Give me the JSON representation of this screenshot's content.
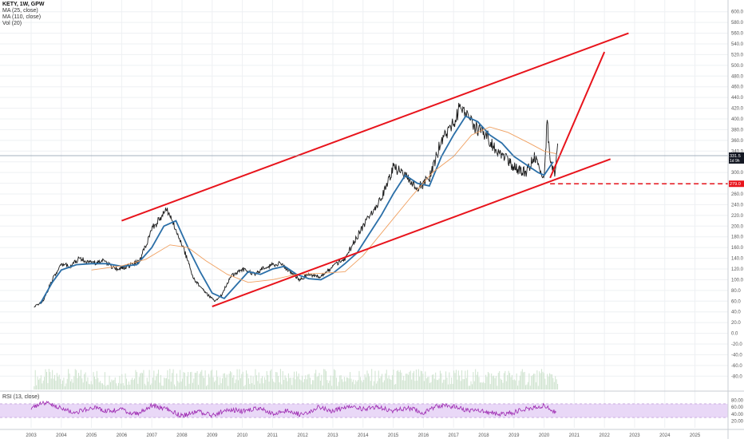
{
  "legend": {
    "title": "KETY, 1W, GPW",
    "ma1": "MA (25, close)",
    "ma2": "MA (110, close)",
    "vol": "Vol (20)",
    "rsi": "RSI (13, close)"
  },
  "colors": {
    "candles": "#1a1a1a",
    "ma_fast": "#2b6fa8",
    "ma_slow": "#f0a060",
    "channel": "#e8141c",
    "rsi_line": "#9c27b0",
    "rsi_band": "#e9d8f7",
    "volume": "#cfe3cf",
    "price_line": "#8899aa"
  },
  "price_axis": {
    "labels": [
      "600.0",
      "580.0",
      "560.0",
      "540.0",
      "520.0",
      "500.0",
      "480.0",
      "460.0",
      "440.0",
      "420.0",
      "400.0",
      "380.0",
      "360.0",
      "340.0",
      "320.0",
      "300.0",
      "280.0",
      "260.0",
      "240.0",
      "220.0",
      "200.0",
      "180.0",
      "160.0",
      "140.0",
      "120.0",
      "100.0",
      "80.0",
      "60.0",
      "40.0",
      "20.0",
      "0.0",
      "-20.0",
      "-40.0",
      "-60.0",
      "-80.0"
    ],
    "current_price": "331.5",
    "current_sub": "1d 9h",
    "support_price": "279.0"
  },
  "rsi_axis": {
    "labels": [
      "80.00",
      "60.00",
      "40.00",
      "20.00"
    ]
  },
  "time_axis": {
    "labels": [
      "2003",
      "2004",
      "2005",
      "2006",
      "2007",
      "2008",
      "2009",
      "2010",
      "2011",
      "2012",
      "2013",
      "2014",
      "2015",
      "2016",
      "2017",
      "2018",
      "2019",
      "2020",
      "2021",
      "2022",
      "2023",
      "2024",
      "2025"
    ]
  },
  "chart_data": {
    "type": "line",
    "title": "KETY, 1W, GPW",
    "xlabel": "",
    "ylabel": "",
    "ylim": [
      -90,
      610
    ],
    "grid": true,
    "series": [
      {
        "name": "KETY, 1W, GPW",
        "x": [
          2003.1,
          2003.4,
          2003.7,
          2004.0,
          2004.3,
          2004.6,
          2005.0,
          2005.4,
          2005.8,
          2006.2,
          2006.6,
          2007.0,
          2007.3,
          2007.5,
          2007.8,
          2008.1,
          2008.4,
          2008.8,
          2009.1,
          2009.3,
          2009.6,
          2010.0,
          2010.4,
          2010.8,
          2011.2,
          2011.5,
          2011.9,
          2012.2,
          2012.6,
          2013.0,
          2013.4,
          2013.8,
          2014.2,
          2014.6,
          2015.0,
          2015.4,
          2015.8,
          2016.2,
          2016.6,
          2017.0,
          2017.2,
          2017.5,
          2017.8,
          2018.1,
          2018.4,
          2018.7,
          2019.0,
          2019.4,
          2019.7,
          2020.0,
          2020.1,
          2020.2,
          2020.35,
          2020.45
        ],
        "y": [
          50,
          60,
          100,
          130,
          125,
          140,
          130,
          135,
          120,
          125,
          135,
          195,
          215,
          230,
          195,
          150,
          100,
          75,
          60,
          70,
          105,
          120,
          110,
          125,
          130,
          120,
          100,
          110,
          105,
          125,
          140,
          180,
          220,
          250,
          310,
          295,
          270,
          290,
          360,
          390,
          420,
          400,
          380,
          370,
          340,
          330,
          310,
          300,
          330,
          280,
          395,
          330,
          300,
          355
        ]
      },
      {
        "name": "MA (25, close)",
        "x": [
          2003.3,
          2003.7,
          2004.0,
          2004.5,
          2005.0,
          2005.5,
          2006.0,
          2006.5,
          2007.0,
          2007.4,
          2007.8,
          2008.2,
          2008.6,
          2009.0,
          2009.4,
          2009.8,
          2010.2,
          2010.6,
          2011.0,
          2011.4,
          2011.8,
          2012.2,
          2012.6,
          2013.0,
          2013.4,
          2013.8,
          2014.2,
          2014.6,
          2015.0,
          2015.4,
          2015.8,
          2016.2,
          2016.6,
          2017.0,
          2017.4,
          2017.8,
          2018.2,
          2018.6,
          2019.0,
          2019.4,
          2019.8,
          2020.0,
          2020.3
        ],
        "y": [
          55,
          95,
          118,
          128,
          130,
          130,
          125,
          128,
          160,
          200,
          210,
          160,
          115,
          75,
          65,
          90,
          115,
          110,
          120,
          125,
          110,
          102,
          100,
          112,
          130,
          150,
          185,
          220,
          260,
          295,
          280,
          275,
          330,
          370,
          405,
          395,
          370,
          355,
          330,
          315,
          300,
          295,
          320
        ]
      },
      {
        "name": "MA (110, close)",
        "x": [
          2005.0,
          2006.0,
          2006.8,
          2007.6,
          2008.2,
          2008.8,
          2009.5,
          2010.2,
          2011.0,
          2011.8,
          2012.6,
          2013.4,
          2014.0,
          2014.8,
          2015.6,
          2016.3,
          2017.0,
          2017.6,
          2018.2,
          2018.8,
          2019.5,
          2020.0,
          2020.4
        ],
        "y": [
          118,
          126,
          138,
          165,
          160,
          135,
          110,
          95,
          100,
          110,
          112,
          115,
          145,
          200,
          255,
          300,
          330,
          370,
          385,
          375,
          355,
          340,
          335
        ]
      }
    ],
    "channel_lines": [
      {
        "name": "upper",
        "x": [
          2006.0,
          2022.8
        ],
        "y": [
          210,
          560
        ]
      },
      {
        "name": "lower",
        "x": [
          2009.0,
          2022.2
        ],
        "y": [
          50,
          325
        ]
      },
      {
        "name": "projection",
        "x": [
          2020.2,
          2022.0
        ],
        "y": [
          290,
          525
        ]
      }
    ],
    "support_level": {
      "value": 279,
      "x_from": 2020.2
    },
    "rsi": {
      "name": "RSI (13, close)",
      "x": [
        2003.0,
        2003.5,
        2004.0,
        2004.5,
        2005.0,
        2005.5,
        2006.0,
        2006.5,
        2007.0,
        2007.5,
        2008.0,
        2008.5,
        2009.0,
        2009.5,
        2010.0,
        2010.5,
        2011.0,
        2011.5,
        2012.0,
        2012.5,
        2013.0,
        2013.5,
        2014.0,
        2014.5,
        2015.0,
        2015.5,
        2016.0,
        2016.5,
        2017.0,
        2017.5,
        2018.0,
        2018.5,
        2019.0,
        2019.5,
        2020.0,
        2020.4
      ],
      "y": [
        60,
        75,
        58,
        45,
        60,
        48,
        52,
        40,
        65,
        55,
        35,
        50,
        35,
        55,
        48,
        58,
        42,
        50,
        38,
        60,
        48,
        62,
        55,
        60,
        50,
        58,
        45,
        65,
        62,
        50,
        48,
        40,
        45,
        58,
        65,
        42
      ],
      "band": [
        30,
        70
      ]
    }
  }
}
